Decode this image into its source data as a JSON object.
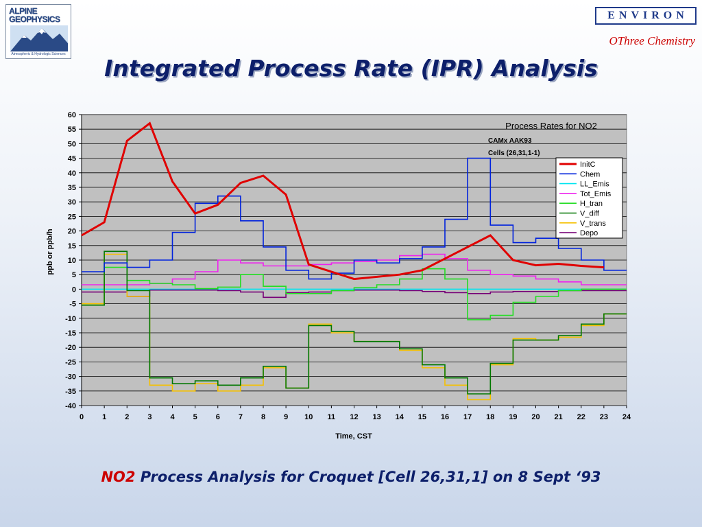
{
  "header": {
    "logo_left_line1": "ALPINE",
    "logo_left_line2": "GEOPHYSICS",
    "logo_left_tagline": "Atmospheric & Hydrologic Sciences",
    "logo_right": "ENVIRON",
    "tagline": "OThree Chemistry",
    "title": "Integrated Process Rate (IPR) Analysis"
  },
  "caption": {
    "highlight": "NO2",
    "rest": " Process Analysis for Croquet [Cell 26,31,1] on 8 Sept ‘93"
  },
  "colors": {
    "title": "#0d1f6a",
    "accent_red": "#cc0000",
    "plot_bg": "#c0c0c0"
  },
  "chart_data": {
    "type": "line",
    "title": "Process Rates for NO2",
    "subtitle_lines": [
      "CAMx  AAK93",
      "Cells (26,31,1-1)"
    ],
    "xlabel": "Time, CST",
    "ylabel": "ppb or ppb/h",
    "xlim": [
      0,
      24
    ],
    "ylim": [
      -40,
      60
    ],
    "x_ticks": [
      0,
      1,
      2,
      3,
      4,
      5,
      6,
      7,
      8,
      9,
      10,
      11,
      12,
      13,
      14,
      15,
      16,
      17,
      18,
      19,
      20,
      21,
      22,
      23,
      24
    ],
    "y_ticks": [
      60,
      55,
      50,
      45,
      40,
      35,
      30,
      25,
      20,
      15,
      10,
      5,
      0,
      -5,
      -10,
      -15,
      -20,
      -25,
      -30,
      -35,
      -40
    ],
    "grid": "horizontal",
    "legend_position": "right",
    "series": [
      {
        "name": "InitC",
        "color": "#e00000",
        "style": "line",
        "width": 3,
        "x": [
          0,
          1,
          2,
          3,
          4,
          5,
          6,
          7,
          8,
          9,
          10,
          12,
          14,
          15,
          16,
          18,
          19,
          20,
          21,
          22,
          23
        ],
        "y": [
          18.5,
          23,
          51,
          57,
          37,
          26,
          29,
          36.5,
          39,
          32.5,
          8.5,
          3.5,
          5,
          6.5,
          10.5,
          18.5,
          10,
          8.2,
          8.7,
          8,
          7.5
        ]
      },
      {
        "name": "Chem",
        "color": "#0022dd",
        "style": "step",
        "values": [
          6,
          9,
          7.5,
          10,
          19.5,
          29.5,
          32,
          23.5,
          14.5,
          6.5,
          3.5,
          5.5,
          10,
          9,
          10.5,
          14.5,
          24,
          45,
          22,
          16,
          17.5,
          14,
          10,
          6.5
        ]
      },
      {
        "name": "LL_Emis",
        "color": "#00e5f0",
        "style": "step",
        "values": [
          0,
          0,
          0,
          0,
          0,
          0,
          0,
          0,
          0,
          0,
          0,
          0,
          0,
          0,
          0,
          0,
          0,
          0,
          0,
          0,
          0,
          0,
          0,
          0
        ]
      },
      {
        "name": "Tot_Emis",
        "color": "#ee22ee",
        "style": "step",
        "values": [
          1.5,
          1.5,
          1.5,
          2,
          3.5,
          6,
          10,
          9,
          8,
          8,
          8.5,
          9,
          9.5,
          10,
          11.5,
          12,
          10.5,
          6.5,
          5,
          4.5,
          3.5,
          2.5,
          1.5,
          1.5
        ]
      },
      {
        "name": "H_tran",
        "color": "#22dd22",
        "style": "step",
        "values": [
          -5.5,
          7.5,
          3,
          2,
          1.5,
          0.2,
          0.7,
          5,
          1,
          -1.5,
          -1.5,
          -0.5,
          0.5,
          1.5,
          3.5,
          7,
          3.5,
          -10.5,
          -9,
          -4.5,
          -2.5,
          -0.5,
          0,
          0
        ]
      },
      {
        "name": "V_diff",
        "color": "#007700",
        "style": "step",
        "values": [
          -5.5,
          13,
          -0.5,
          -30.5,
          -32.5,
          -31.5,
          -33,
          -30.5,
          -26.5,
          -34,
          -12.5,
          -14.5,
          -18,
          -18,
          -20.5,
          -26,
          -30.5,
          -36,
          -25.5,
          -17.5,
          -17.5,
          -16,
          -12,
          -8.5
        ]
      },
      {
        "name": "V_trans",
        "color": "#f5c000",
        "style": "step",
        "values": [
          -5,
          12,
          -2.5,
          -33,
          -35,
          -32.5,
          -35,
          -33,
          -27,
          -34,
          -12,
          -15,
          -18,
          -18,
          -21,
          -27,
          -33,
          -38,
          -26,
          -17,
          -17.5,
          -16.5,
          -12.5,
          -8.5
        ]
      },
      {
        "name": "Depo",
        "color": "#770077",
        "style": "step",
        "values": [
          -1,
          -1,
          -2.5,
          -0.3,
          -0.3,
          -0.3,
          -0.5,
          -1,
          -2.8,
          -1.2,
          -1,
          -0.5,
          -0.3,
          -0.3,
          -0.5,
          -0.8,
          -1.2,
          -1.5,
          -1,
          -0.8,
          -0.8,
          -0.5,
          -0.5,
          -0.5
        ]
      }
    ]
  }
}
